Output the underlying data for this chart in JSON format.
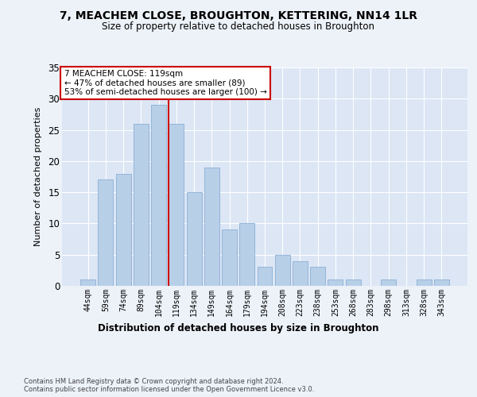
{
  "title": "7, MEACHEM CLOSE, BROUGHTON, KETTERING, NN14 1LR",
  "subtitle": "Size of property relative to detached houses in Broughton",
  "xlabel": "Distribution of detached houses by size in Broughton",
  "ylabel": "Number of detached properties",
  "bar_labels": [
    "44sqm",
    "59sqm",
    "74sqm",
    "89sqm",
    "104sqm",
    "119sqm",
    "134sqm",
    "149sqm",
    "164sqm",
    "179sqm",
    "194sqm",
    "208sqm",
    "223sqm",
    "238sqm",
    "253sqm",
    "268sqm",
    "283sqm",
    "298sqm",
    "313sqm",
    "328sqm",
    "343sqm"
  ],
  "bar_values": [
    1,
    17,
    18,
    26,
    29,
    26,
    15,
    19,
    9,
    10,
    3,
    5,
    4,
    3,
    1,
    1,
    0,
    1,
    0,
    1,
    1
  ],
  "bar_color": "#b8cfe8",
  "bar_edge_color": "#8aafd4",
  "highlight_index": 5,
  "vline_color": "#cc0000",
  "annotation_line1": "7 MEACHEM CLOSE: 119sqm",
  "annotation_line2": "← 47% of detached houses are smaller (89)",
  "annotation_line3": "53% of semi-detached houses are larger (100) →",
  "annotation_box_edge_color": "#cc0000",
  "ylim": [
    0,
    35
  ],
  "yticks": [
    0,
    5,
    10,
    15,
    20,
    25,
    30,
    35
  ],
  "footer_text": "Contains HM Land Registry data © Crown copyright and database right 2024.\nContains public sector information licensed under the Open Government Licence v3.0.",
  "bg_color": "#edf2f9",
  "plot_bg_color": "#dce6f5"
}
